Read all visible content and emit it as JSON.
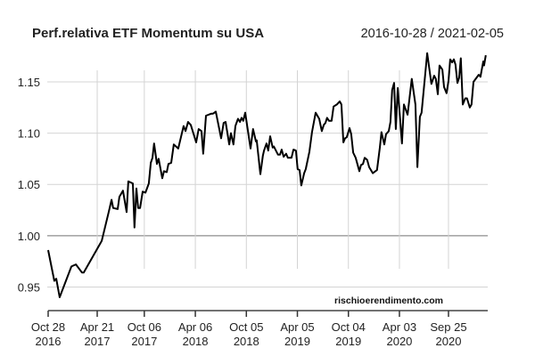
{
  "chart_data": {
    "type": "line",
    "title": "Perf.relativa ETF Momentum su USA",
    "date_range": "2016-10-28 / 2021-02-05",
    "watermark": "rischioerendimento.com",
    "xlabel": "",
    "ylabel": "",
    "xlim": [
      "2016-10-28",
      "2021-02-12"
    ],
    "ylim": [
      0.93,
      1.185
    ],
    "grid": true,
    "reference_line": 1.0,
    "y_ticks": [
      {
        "value": 0.95,
        "label": "0.95"
      },
      {
        "value": 1.0,
        "label": "1.00"
      },
      {
        "value": 1.05,
        "label": "1.05"
      },
      {
        "value": 1.1,
        "label": "1.10"
      },
      {
        "value": 1.15,
        "label": "1.15"
      }
    ],
    "x_ticks": [
      {
        "date": "2016-10-28",
        "line1": "Oct 28",
        "line2": "2016"
      },
      {
        "date": "2017-04-21",
        "line1": "Apr 21",
        "line2": "2017"
      },
      {
        "date": "2017-10-06",
        "line1": "Oct 06",
        "line2": "2017"
      },
      {
        "date": "2018-04-06",
        "line1": "Apr 06",
        "line2": "2018"
      },
      {
        "date": "2018-10-05",
        "line1": "Oct 05",
        "line2": "2018"
      },
      {
        "date": "2019-04-05",
        "line1": "Apr 05",
        "line2": "2019"
      },
      {
        "date": "2019-10-04",
        "line1": "Oct 04",
        "line2": "2019"
      },
      {
        "date": "2020-04-03",
        "line1": "Apr 03",
        "line2": "2020"
      },
      {
        "date": "2020-09-25",
        "line1": "Sep 25",
        "line2": "2020"
      }
    ],
    "line_color": "#000000",
    "series": [
      {
        "points": [
          [
            "2016-10-28",
            0.986
          ],
          [
            "2016-11-19",
            0.956
          ],
          [
            "2016-11-26",
            0.958
          ],
          [
            "2016-12-08",
            0.94
          ],
          [
            "2017-01-19",
            0.97
          ],
          [
            "2017-02-04",
            0.972
          ],
          [
            "2017-02-26",
            0.964
          ],
          [
            "2017-03-04",
            0.964
          ],
          [
            "2017-05-07",
            0.995
          ],
          [
            "2017-06-01",
            1.023
          ],
          [
            "2017-06-11",
            1.035
          ],
          [
            "2017-06-17",
            1.027
          ],
          [
            "2017-07-03",
            1.026
          ],
          [
            "2017-07-09",
            1.038
          ],
          [
            "2017-07-22",
            1.044
          ],
          [
            "2017-08-04",
            1.023
          ],
          [
            "2017-08-10",
            1.053
          ],
          [
            "2017-08-26",
            1.051
          ],
          [
            "2017-09-01",
            1.008
          ],
          [
            "2017-09-08",
            1.046
          ],
          [
            "2017-09-14",
            1.027
          ],
          [
            "2017-09-21",
            1.027
          ],
          [
            "2017-09-30",
            1.043
          ],
          [
            "2017-10-10",
            1.042
          ],
          [
            "2017-10-22",
            1.051
          ],
          [
            "2017-10-29",
            1.071
          ],
          [
            "2017-11-04",
            1.076
          ],
          [
            "2017-11-10",
            1.09
          ],
          [
            "2017-11-20",
            1.07
          ],
          [
            "2017-11-26",
            1.075
          ],
          [
            "2017-12-09",
            1.056
          ],
          [
            "2017-12-15",
            1.063
          ],
          [
            "2017-12-25",
            1.062
          ],
          [
            "2017-12-31",
            1.07
          ],
          [
            "2018-01-10",
            1.071
          ],
          [
            "2018-01-19",
            1.089
          ],
          [
            "2018-02-04",
            1.085
          ],
          [
            "2018-02-23",
            1.107
          ],
          [
            "2018-03-02",
            1.102
          ],
          [
            "2018-03-11",
            1.111
          ],
          [
            "2018-03-21",
            1.108
          ],
          [
            "2018-04-09",
            1.091
          ],
          [
            "2018-04-18",
            1.104
          ],
          [
            "2018-04-28",
            1.102
          ],
          [
            "2018-05-04",
            1.08
          ],
          [
            "2018-05-14",
            1.117
          ],
          [
            "2018-06-02",
            1.119
          ],
          [
            "2018-06-08",
            1.119
          ],
          [
            "2018-06-18",
            1.121
          ],
          [
            "2018-07-07",
            1.095
          ],
          [
            "2018-07-16",
            1.11
          ],
          [
            "2018-07-23",
            1.111
          ],
          [
            "2018-08-05",
            1.089
          ],
          [
            "2018-08-11",
            1.1
          ],
          [
            "2018-08-20",
            1.089
          ],
          [
            "2018-08-27",
            1.107
          ],
          [
            "2018-09-05",
            1.114
          ],
          [
            "2018-09-12",
            1.111
          ],
          [
            "2018-09-18",
            1.115
          ],
          [
            "2018-09-24",
            1.112
          ],
          [
            "2018-10-01",
            1.12
          ],
          [
            "2018-10-20",
            1.085
          ],
          [
            "2018-10-29",
            1.104
          ],
          [
            "2018-11-08",
            1.092
          ],
          [
            "2018-11-11",
            1.093
          ],
          [
            "2018-11-24",
            1.06
          ],
          [
            "2018-12-03",
            1.078
          ],
          [
            "2018-12-07",
            1.083
          ],
          [
            "2018-12-16",
            1.09
          ],
          [
            "2018-12-22",
            1.083
          ],
          [
            "2018-12-29",
            1.097
          ],
          [
            "2019-01-07",
            1.086
          ],
          [
            "2019-01-11",
            1.087
          ],
          [
            "2019-01-26",
            1.079
          ],
          [
            "2019-02-02",
            1.079
          ],
          [
            "2019-02-08",
            1.084
          ],
          [
            "2019-02-15",
            1.077
          ],
          [
            "2019-02-24",
            1.08
          ],
          [
            "2019-03-02",
            1.076
          ],
          [
            "2019-03-15",
            1.076
          ],
          [
            "2019-03-22",
            1.084
          ],
          [
            "2019-03-31",
            1.083
          ],
          [
            "2019-04-06",
            1.065
          ],
          [
            "2019-04-13",
            1.064
          ],
          [
            "2019-04-19",
            1.049
          ],
          [
            "2019-04-29",
            1.061
          ],
          [
            "2019-05-05",
            1.065
          ],
          [
            "2019-05-18",
            1.082
          ],
          [
            "2019-05-27",
            1.101
          ],
          [
            "2019-06-09",
            1.12
          ],
          [
            "2019-06-22",
            1.114
          ],
          [
            "2019-07-01",
            1.102
          ],
          [
            "2019-07-08",
            1.108
          ],
          [
            "2019-07-14",
            1.11
          ],
          [
            "2019-07-20",
            1.115
          ],
          [
            "2019-07-27",
            1.112
          ],
          [
            "2019-08-05",
            1.112
          ],
          [
            "2019-08-12",
            1.126
          ],
          [
            "2019-08-24",
            1.128
          ],
          [
            "2019-09-03",
            1.131
          ],
          [
            "2019-09-09",
            1.128
          ],
          [
            "2019-09-16",
            1.091
          ],
          [
            "2019-09-22",
            1.095
          ],
          [
            "2019-09-28",
            1.096
          ],
          [
            "2019-10-08",
            1.105
          ],
          [
            "2019-10-14",
            1.099
          ],
          [
            "2019-10-21",
            1.081
          ],
          [
            "2019-10-30",
            1.076
          ],
          [
            "2019-11-12",
            1.063
          ],
          [
            "2019-11-18",
            1.069
          ],
          [
            "2019-11-25",
            1.07
          ],
          [
            "2019-12-01",
            1.076
          ],
          [
            "2019-12-10",
            1.074
          ],
          [
            "2019-12-17",
            1.067
          ],
          [
            "2019-12-30",
            1.061
          ],
          [
            "2020-01-14",
            1.064
          ],
          [
            "2020-01-24",
            1.086
          ],
          [
            "2020-01-30",
            1.101
          ],
          [
            "2020-02-09",
            1.089
          ],
          [
            "2020-02-15",
            1.099
          ],
          [
            "2020-02-25",
            1.102
          ],
          [
            "2020-03-02",
            1.111
          ],
          [
            "2020-03-08",
            1.142
          ],
          [
            "2020-03-15",
            1.149
          ],
          [
            "2020-03-21",
            1.104
          ],
          [
            "2020-03-28",
            1.144
          ],
          [
            "2020-04-12",
            1.09
          ],
          [
            "2020-04-19",
            1.128
          ],
          [
            "2020-05-02",
            1.118
          ],
          [
            "2020-05-17",
            1.153
          ],
          [
            "2020-05-30",
            1.128
          ],
          [
            "2020-06-06",
            1.067
          ],
          [
            "2020-06-15",
            1.116
          ],
          [
            "2020-06-21",
            1.12
          ],
          [
            "2020-07-11",
            1.178
          ],
          [
            "2020-07-26",
            1.148
          ],
          [
            "2020-08-05",
            1.156
          ],
          [
            "2020-08-11",
            1.153
          ],
          [
            "2020-08-18",
            1.138
          ],
          [
            "2020-08-24",
            1.166
          ],
          [
            "2020-09-03",
            1.162
          ],
          [
            "2020-09-09",
            1.145
          ],
          [
            "2020-09-18",
            1.139
          ],
          [
            "2020-09-25",
            1.151
          ],
          [
            "2020-10-01",
            1.172
          ],
          [
            "2020-10-08",
            1.169
          ],
          [
            "2020-10-14",
            1.172
          ],
          [
            "2020-10-20",
            1.167
          ],
          [
            "2020-10-27",
            1.149
          ],
          [
            "2020-11-02",
            1.154
          ],
          [
            "2020-11-08",
            1.173
          ],
          [
            "2020-11-15",
            1.128
          ],
          [
            "2020-11-24",
            1.134
          ],
          [
            "2020-11-30",
            1.134
          ],
          [
            "2020-12-10",
            1.125
          ],
          [
            "2020-12-16",
            1.128
          ],
          [
            "2020-12-23",
            1.15
          ],
          [
            "2021-01-11",
            1.157
          ],
          [
            "2021-01-17",
            1.155
          ],
          [
            "2021-01-27",
            1.17
          ],
          [
            "2021-01-30",
            1.166
          ],
          [
            "2021-02-05",
            1.176
          ]
        ]
      }
    ]
  }
}
